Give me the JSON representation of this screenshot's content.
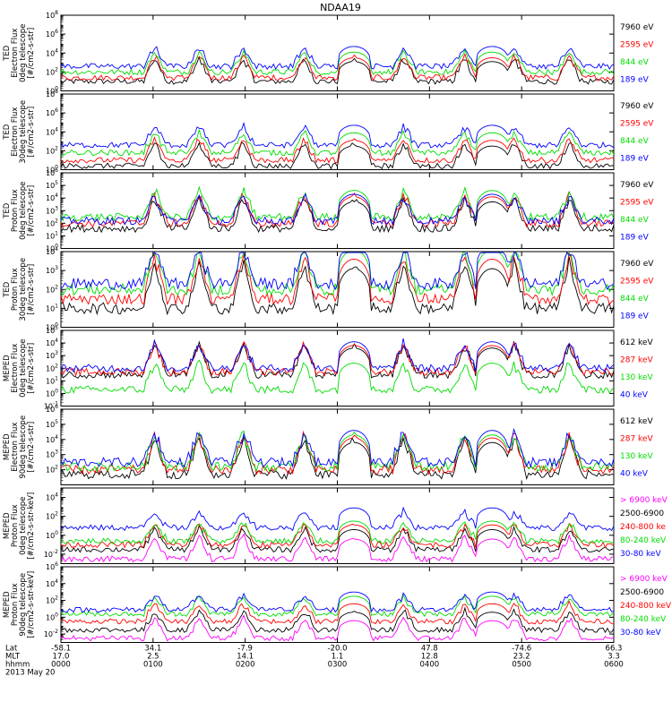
{
  "title": "NDAA19",
  "colors": {
    "black": "#000000",
    "red": "#ff0000",
    "green": "#00dd00",
    "blue": "#0000ff",
    "magenta": "#ff00ff"
  },
  "chart_data": [
    {
      "type": "line",
      "ylabel": [
        "TED",
        "Electron Flux",
        "0deg telescope",
        "[#/cm2-s-str]"
      ],
      "ylog": true,
      "ylim_exp": [
        0,
        8
      ],
      "yticks": [
        0,
        2,
        4,
        6,
        8
      ],
      "series": [
        {
          "name": "7960 eV",
          "color": "black"
        },
        {
          "name": "2595 eV",
          "color": "red"
        },
        {
          "name": "844 eV",
          "color": "green"
        },
        {
          "name": "189 eV",
          "color": "blue"
        }
      ],
      "levels": [
        1.0,
        1.4,
        2.0,
        2.6
      ]
    },
    {
      "type": "line",
      "ylabel": [
        "TED",
        "Electron Flux",
        "30deg telescope",
        "[#/cm2-s-str]"
      ],
      "ylog": true,
      "ylim_exp": [
        0,
        8
      ],
      "yticks": [
        0,
        2,
        4,
        6,
        8
      ],
      "series": [
        {
          "name": "7960 eV",
          "color": "black"
        },
        {
          "name": "2595 eV",
          "color": "red"
        },
        {
          "name": "844 eV",
          "color": "green"
        },
        {
          "name": "189 eV",
          "color": "blue"
        }
      ],
      "levels": [
        0.4,
        1.0,
        1.8,
        2.6
      ]
    },
    {
      "type": "line",
      "ylabel": [
        "TED",
        "Proton Flux",
        "0deg telescope",
        "[#/cm2-s-str]"
      ],
      "ylog": true,
      "ylim_exp": [
        0,
        6
      ],
      "yticks": [
        0,
        1,
        2,
        3,
        4,
        5,
        6
      ],
      "series": [
        {
          "name": "7960 eV",
          "color": "black"
        },
        {
          "name": "2595 eV",
          "color": "red"
        },
        {
          "name": "844 eV",
          "color": "green"
        },
        {
          "name": "189 eV",
          "color": "blue"
        }
      ],
      "levels": [
        1.6,
        2.0,
        2.5,
        2.2
      ]
    },
    {
      "type": "line",
      "ylabel": [
        "TED",
        "Proton Flux",
        "30deg telescope",
        "[#/cm2-s-str]"
      ],
      "ylog": true,
      "ylim_exp": [
        0,
        4
      ],
      "yticks": [
        0,
        1,
        2,
        3,
        4
      ],
      "series": [
        {
          "name": "7960 eV",
          "color": "black"
        },
        {
          "name": "2595 eV",
          "color": "red"
        },
        {
          "name": "844 eV",
          "color": "green"
        },
        {
          "name": "189 eV",
          "color": "blue"
        }
      ],
      "levels": [
        1.0,
        1.5,
        2.0,
        2.3
      ]
    },
    {
      "type": "line",
      "ylabel": [
        "MEPED",
        "Electron Flux",
        "0deg telescope",
        "[#/cm2-s-str]"
      ],
      "ylog": true,
      "ylim_exp": [
        -1,
        5
      ],
      "yticks": [
        -1,
        0,
        1,
        2,
        3,
        4,
        5
      ],
      "series": [
        {
          "name": "612 keV",
          "color": "black"
        },
        {
          "name": "287 keV",
          "color": "red"
        },
        {
          "name": "130 keV",
          "color": "green"
        },
        {
          "name": "40 keV",
          "color": "blue"
        }
      ],
      "levels": [
        1.5,
        1.7,
        0.3,
        2.0
      ]
    },
    {
      "type": "line",
      "ylabel": [
        "MEPED",
        "Electron Flux",
        "90deg telescope",
        "[#/cm2-s-str]"
      ],
      "ylog": true,
      "ylim_exp": [
        1,
        6
      ],
      "yticks": [
        2,
        3,
        4,
        5,
        6
      ],
      "series": [
        {
          "name": "612 keV",
          "color": "black"
        },
        {
          "name": "287 keV",
          "color": "red"
        },
        {
          "name": "130 keV",
          "color": "green"
        },
        {
          "name": "40 keV",
          "color": "blue"
        }
      ],
      "levels": [
        1.7,
        2.0,
        2.2,
        2.5
      ]
    },
    {
      "type": "line",
      "ylabel": [
        "MEPED",
        "Proton Flux",
        "0deg telescope",
        "[#/cm2-s-str-keV]"
      ],
      "ylog": true,
      "ylim_exp": [
        -3,
        5
      ],
      "yticks": [
        -2,
        0,
        2,
        4
      ],
      "series": [
        {
          "name": "> 6900 keV",
          "color": "magenta"
        },
        {
          "name": "2500-6900",
          "color": "black"
        },
        {
          "name": "240-800 ke",
          "color": "red"
        },
        {
          "name": "80-240 keV",
          "color": "green"
        },
        {
          "name": "30-80 keV",
          "color": "blue"
        }
      ],
      "levels": [
        -2.5,
        -1.5,
        -1.0,
        -0.6,
        0.8
      ]
    },
    {
      "type": "line",
      "ylabel": [
        "MEPED",
        "Proton Flux",
        "90deg telescope",
        "[#/cm2-s-str-keV]"
      ],
      "ylog": true,
      "ylim_exp": [
        -3,
        6
      ],
      "yticks": [
        -2,
        0,
        2,
        4,
        6
      ],
      "series": [
        {
          "name": "> 6900 keV",
          "color": "magenta"
        },
        {
          "name": "2500-6900",
          "color": "black"
        },
        {
          "name": "240-800 keV",
          "color": "red"
        },
        {
          "name": "80-240 keV",
          "color": "green"
        },
        {
          "name": "30-80 keV",
          "color": "blue"
        }
      ],
      "levels": [
        -2.5,
        -1.5,
        -0.5,
        0.4,
        0.9
      ]
    }
  ],
  "passes": [
    0.17,
    0.25,
    0.33,
    0.44,
    0.53,
    0.62,
    0.73,
    0.82,
    0.92
  ],
  "belt_passes": [
    0.53,
    0.78
  ],
  "xaxis": {
    "row_labels": [
      "Lat",
      "MLT",
      "hhmm",
      "2013 May 20"
    ],
    "ticks": [
      {
        "lat": "-58.1",
        "mlt": "17.0",
        "hhmm": "0000"
      },
      {
        "lat": "34.1",
        "mlt": "2.5",
        "hhmm": "0100"
      },
      {
        "lat": "-7.9",
        "mlt": "14.1",
        "hhmm": "0200"
      },
      {
        "lat": "-20.0",
        "mlt": "1.1",
        "hhmm": "0300"
      },
      {
        "lat": "47.8",
        "mlt": "12.8",
        "hhmm": "0400"
      },
      {
        "lat": "-74.6",
        "mlt": "23.2",
        "hhmm": "0500"
      },
      {
        "lat": "66.3",
        "mlt": "3.3",
        "hhmm": "0600"
      }
    ]
  }
}
